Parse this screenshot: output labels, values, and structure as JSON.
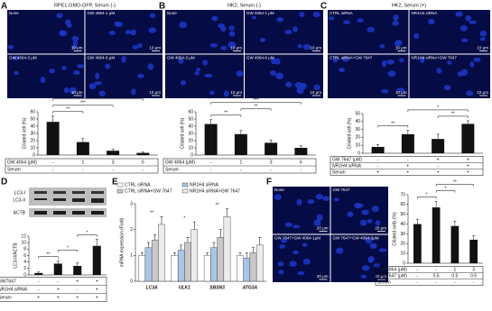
{
  "panels": [
    {
      "label": "A",
      "title": "RPE1-GMO-GFP, Serum (-)",
      "images": [
        "None",
        "GW 4064-1 μM",
        "GW 4064-3 μM",
        "GW 4064-6 μM"
      ],
      "scale": "10 μm"
    },
    {
      "label": "B",
      "title": "HK2, Serum (-)",
      "images": [
        "None",
        "GW 4064-1 μM",
        "GW 4064-3 μM",
        "GW 4064-6 μM"
      ],
      "scale": "10 μm"
    },
    {
      "label": "C",
      "title": "HK2, Serum (+)",
      "images": [
        "CTRL siRNA",
        "NR1H4 siRNA",
        "CTRL siRNA+GW 7647",
        "NR1H4 siRNA+GW 7647"
      ],
      "scale": "10 μm"
    },
    {
      "label": "D",
      "blot": [
        "LC3-I",
        "LC3-II",
        "ACTB"
      ]
    },
    {
      "label": "E"
    },
    {
      "label": "F",
      "images": [
        "None",
        "GW 7647",
        "GW 7647+GW 4064-1μM",
        "GW 7647+GW 4064-3μM"
      ],
      "scale": "20 μm"
    }
  ],
  "chart_data": [
    {
      "type": "bar",
      "y_label": "Ciliated cell (%)",
      "color": "#111111",
      "values": [
        46,
        18,
        6,
        3
      ],
      "errors": [
        8,
        5,
        2,
        1
      ],
      "ylim": [
        0,
        60
      ],
      "yticks": [
        0,
        10,
        20,
        30,
        40,
        50,
        60
      ],
      "annotations": [
        "**",
        "***",
        "***"
      ],
      "table": [
        {
          "label": "GW 4064 (μM)",
          "cells": [
            "-",
            "1",
            "3",
            "6"
          ]
        },
        {
          "label": "Serum",
          "cells": [
            "-",
            "-",
            "-",
            "-"
          ]
        }
      ]
    },
    {
      "type": "bar",
      "y_label": "Ciliated cell (%)",
      "color": "#111111",
      "values": [
        43,
        29,
        17,
        10
      ],
      "errors": [
        6,
        5,
        4,
        3
      ],
      "ylim": [
        0,
        60
      ],
      "yticks": [
        0,
        10,
        20,
        30,
        40,
        50,
        60
      ],
      "annotations": [
        "**",
        "**",
        "***"
      ],
      "table": [
        {
          "label": "GW 4064 (μM)",
          "cells": [
            "-",
            "1",
            "3",
            "6"
          ]
        },
        {
          "label": "Serum",
          "cells": [
            "-",
            "-",
            "-",
            "-"
          ]
        }
      ]
    },
    {
      "type": "bar",
      "y_label": "Ciliated cell (%)",
      "color": "#111111",
      "values": [
        8,
        24,
        18,
        37
      ],
      "errors": [
        3,
        5,
        6,
        4
      ],
      "ylim": [
        0,
        50
      ],
      "yticks": [
        0,
        10,
        20,
        30,
        40,
        50
      ],
      "annotations": [
        "**",
        "**",
        "*"
      ],
      "table": [
        {
          "label": "GW 7647 (μM)",
          "cells": [
            "-",
            "-",
            "+",
            "+"
          ]
        },
        {
          "label": "NR1H4 siRNA",
          "cells": [
            "-",
            "+",
            "-",
            "+"
          ]
        },
        {
          "label": "Serum",
          "cells": [
            "+",
            "+",
            "+",
            "+"
          ]
        }
      ]
    },
    {
      "type": "bar",
      "y_label": "LC3-II/ACTB",
      "color": "#111111",
      "values": [
        0.6,
        3.5,
        2.8,
        9
      ],
      "errors": [
        0.3,
        0.8,
        1,
        2
      ],
      "ylim": [
        0,
        12
      ],
      "yticks": [
        0,
        2,
        4,
        6,
        8,
        10,
        12
      ],
      "annotations": [
        "**",
        "*",
        "*"
      ],
      "table": [
        {
          "label": "GW7647",
          "cells": [
            "-",
            "-",
            "+",
            "+"
          ]
        },
        {
          "label": "NR1H4 siRNA",
          "cells": [
            "-",
            "+",
            "-",
            "+"
          ]
        },
        {
          "label": "Serum",
          "cells": [
            "+",
            "+",
            "+",
            "+"
          ]
        }
      ]
    },
    {
      "type": "bar",
      "y_label": "mRNA expression (Fold)",
      "categories": [
        "LC3A",
        "ULK1",
        "SBSN3",
        "ATG3A"
      ],
      "series": [
        {
          "name": "CTRL siRNA",
          "color": "#ffffff",
          "values": [
            1,
            1,
            1,
            1
          ],
          "errors": [
            0.1,
            0.1,
            0.1,
            0.1
          ]
        },
        {
          "name": "NR1H4 siRNA",
          "color": "#a9c6e8",
          "values": [
            1.3,
            1.2,
            1.3,
            0.9
          ],
          "errors": [
            0.2,
            0.2,
            0.2,
            0.2
          ]
        },
        {
          "name": "CTRL siRNA+GW 7647",
          "color": "#c8c8c8",
          "values": [
            1.6,
            1.5,
            1.7,
            1.1
          ],
          "errors": [
            0.2,
            0.2,
            0.3,
            0.2
          ]
        },
        {
          "name": "NR1H4 siRNA+GW 7647",
          "color": "#ececec",
          "values": [
            2.2,
            2.0,
            2.5,
            1.4
          ],
          "errors": [
            0.3,
            0.3,
            0.3,
            0.3
          ]
        }
      ],
      "ylim": [
        0,
        3
      ],
      "yticks": [
        0,
        1,
        2,
        3
      ],
      "annotations": [
        "**",
        "*",
        "**"
      ]
    },
    {
      "type": "bar",
      "y_label": "Ciliated cells (%)",
      "color": "#111111",
      "values": [
        40,
        57,
        38,
        24
      ],
      "errors": [
        5,
        6,
        5,
        4
      ],
      "ylim": [
        0,
        70
      ],
      "yticks": [
        0,
        10,
        20,
        30,
        40,
        50,
        60,
        70
      ],
      "annotations": [
        "*",
        "*",
        "**"
      ],
      "table": [
        {
          "label": "GW 4064 (μM)",
          "cells": [
            "-",
            "-",
            "1",
            "3"
          ]
        },
        {
          "label": "GW 7647 (μM)",
          "cells": [
            "-",
            "0.5",
            "0.5",
            "0.5"
          ]
        },
        {
          "label": "Serum",
          "cells": [
            "-",
            "-",
            "-",
            "-"
          ]
        }
      ]
    }
  ]
}
